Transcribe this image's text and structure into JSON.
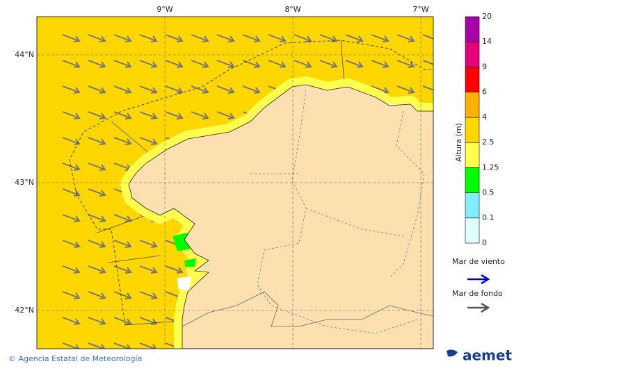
{
  "map": {
    "lon_labels": [
      "9°W",
      "8°W",
      "7°W"
    ],
    "lat_labels": [
      "44°N",
      "43°N",
      "42°N"
    ],
    "ocean_color": "#ffd700",
    "land_color": "#fde0b0",
    "coast_band_color": "#ffff50"
  },
  "colorbar": {
    "title": "Altura (m)",
    "levels": [
      "0",
      "0.1",
      "0.5",
      "1.25",
      "2.5",
      "4",
      "6",
      "9",
      "14",
      "20"
    ],
    "colors": [
      "#e0ffff",
      "#80eeff",
      "#00ff00",
      "#ffff50",
      "#ffd700",
      "#ffb000",
      "#ff0000",
      "#e6007e",
      "#aa00aa"
    ]
  },
  "legend": {
    "wind_sea": "Mar de viento",
    "wind_sea_color": "#0000ee",
    "swell": "Mar de fondo",
    "swell_color": "#555555"
  },
  "footer": {
    "credit": "© Agencia Estatal de Meteorología",
    "logo": "aemet"
  }
}
